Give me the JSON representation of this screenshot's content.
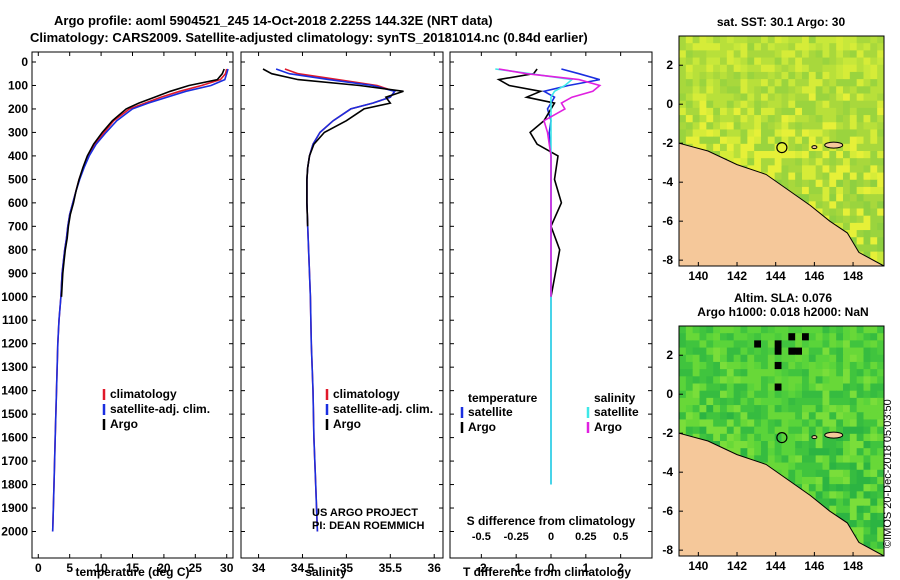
{
  "header": {
    "title_line1": "Argo profile: aoml 5904521_245 14-Oct-2018 2.225S 144.32E (NRT data)",
    "title_line2": "Climatology: CARS2009. Satellite-adjusted climatology: synTS_20181014.nc (0.84d earlier)"
  },
  "colors": {
    "climatology": "#e0182a",
    "satellite_adj": "#1a2ee0",
    "argo": "#000000",
    "sat_salinity": "#3ee8e8",
    "argo_salinity": "#e020e0",
    "land": "#f5c89a"
  },
  "depth_ticks": [
    "0",
    "100",
    "200",
    "300",
    "400",
    "500",
    "600",
    "700",
    "800",
    "900",
    "1000",
    "1100",
    "1200",
    "1300",
    "1400",
    "1500",
    "1600",
    "1700",
    "1800",
    "1900",
    "2000"
  ],
  "chart_data": [
    {
      "type": "line",
      "title": "temperature profile",
      "xlabel": "temperature (deg C)",
      "ylabel": "depth",
      "xlim": [
        -1,
        31
      ],
      "ylim": [
        2060,
        0
      ],
      "xticks": [
        "0",
        "5",
        "10",
        "15",
        "20",
        "25",
        "30"
      ],
      "series": [
        {
          "name": "climatology",
          "x": [
            30.0,
            29.8,
            29.0,
            26.0,
            22.5,
            19.5,
            17.0,
            14.5,
            12.0,
            10.5,
            9.0,
            8.0,
            7.2,
            6.5,
            6.0,
            5.5,
            5.0,
            4.7,
            4.5,
            4.2,
            4.0,
            3.8,
            3.6,
            3.3,
            3.1,
            2.9,
            2.7,
            2.5,
            2.3
          ],
          "y": [
            30,
            50,
            75,
            100,
            125,
            150,
            175,
            200,
            250,
            300,
            350,
            400,
            450,
            500,
            550,
            600,
            650,
            700,
            750,
            800,
            850,
            900,
            1000,
            1100,
            1200,
            1400,
            1600,
            1800,
            2000
          ]
        },
        {
          "name": "satellite-adj. clim.",
          "x": [
            30.2,
            30.0,
            29.7,
            27.5,
            23.5,
            20.5,
            17.5,
            15.0,
            12.5,
            10.8,
            9.2,
            8.1,
            7.3,
            6.6,
            6.0,
            5.5,
            5.0,
            4.7,
            4.5,
            4.2,
            4.0,
            3.8,
            3.6,
            3.3,
            3.1,
            2.9,
            2.7,
            2.5,
            2.3
          ],
          "y": [
            30,
            50,
            75,
            100,
            125,
            150,
            175,
            200,
            250,
            300,
            350,
            400,
            450,
            500,
            550,
            600,
            650,
            700,
            750,
            800,
            850,
            900,
            1000,
            1100,
            1200,
            1400,
            1600,
            1800,
            2000
          ]
        },
        {
          "name": "Argo",
          "x": [
            29.6,
            29.3,
            28.5,
            24.0,
            21.0,
            18.5,
            16.0,
            14.0,
            11.8,
            10.2,
            8.8,
            7.8,
            7.1,
            6.5,
            6.0,
            5.6,
            5.1,
            4.8,
            4.6,
            4.3,
            4.1,
            3.9,
            3.7
          ],
          "y": [
            30,
            50,
            75,
            100,
            125,
            150,
            175,
            200,
            250,
            300,
            350,
            400,
            450,
            500,
            550,
            600,
            650,
            700,
            750,
            800,
            850,
            900,
            1000
          ]
        }
      ],
      "legend": [
        "climatology",
        "satellite-adj. clim.",
        "Argo"
      ]
    },
    {
      "type": "line",
      "title": "salinity profile",
      "xlabel": "salinity",
      "ylabel": "depth",
      "xlim": [
        33.8,
        36.1
      ],
      "ylim": [
        2060,
        0
      ],
      "xticks": [
        "34",
        "34.5",
        "35",
        "35.5",
        "36"
      ],
      "series": [
        {
          "name": "climatology",
          "x": [
            34.3,
            34.45,
            34.9,
            35.35,
            35.55,
            35.5,
            35.3,
            35.05,
            34.85,
            34.7,
            34.62,
            34.58,
            34.56,
            34.55,
            34.55,
            34.56,
            34.57,
            34.58,
            34.59,
            34.6,
            34.62,
            34.63,
            34.65,
            34.67
          ],
          "y": [
            30,
            50,
            75,
            100,
            125,
            150,
            175,
            200,
            250,
            300,
            350,
            400,
            450,
            500,
            600,
            700,
            800,
            900,
            1000,
            1200,
            1400,
            1600,
            1800,
            2000
          ]
        },
        {
          "name": "satellite-adj. clim.",
          "x": [
            34.2,
            34.35,
            34.8,
            35.3,
            35.55,
            35.5,
            35.3,
            35.05,
            34.85,
            34.7,
            34.62,
            34.58,
            34.56,
            34.55,
            34.55,
            34.56,
            34.57,
            34.58,
            34.59,
            34.6,
            34.62,
            34.63,
            34.65,
            34.67
          ],
          "y": [
            30,
            50,
            75,
            100,
            125,
            150,
            175,
            200,
            250,
            300,
            350,
            400,
            450,
            500,
            600,
            700,
            800,
            900,
            1000,
            1200,
            1400,
            1600,
            1800,
            2000
          ]
        },
        {
          "name": "Argo",
          "x": [
            34.05,
            34.15,
            34.45,
            35.15,
            35.65,
            35.45,
            35.5,
            35.2,
            35.0,
            34.75,
            34.63,
            34.58,
            34.56,
            34.55,
            34.55,
            34.56
          ],
          "y": [
            30,
            50,
            75,
            100,
            125,
            150,
            175,
            200,
            250,
            300,
            350,
            400,
            450,
            500,
            600,
            700
          ]
        }
      ],
      "legend": [
        "climatology",
        "satellite-adj. clim.",
        "Argo"
      ],
      "annotation_line1": "US ARGO PROJECT",
      "annotation_line2": "PI: DEAN ROEMMICH"
    },
    {
      "type": "line",
      "title": "difference from climatology",
      "xlabel": "T difference from climatology",
      "top_xlabel": "S difference from climatology",
      "xlim": [
        -2.9,
        2.9
      ],
      "ylim": [
        2060,
        0
      ],
      "xticks": [
        "-2",
        "-1",
        "0",
        "1",
        "2"
      ],
      "top_xticks": [
        "-0.5",
        "-0.25",
        "0",
        "0.25",
        "0.5"
      ],
      "series": [
        {
          "name": "temperature satellite",
          "x": [
            0.3,
            0.8,
            1.4,
            0.5,
            -0.2,
            0.1,
            0.0,
            -0.1,
            0.0,
            -0.05,
            0.0,
            0.0,
            0.0,
            0.0,
            0.0,
            0.0,
            0.0,
            0.0,
            0.0
          ],
          "y": [
            30,
            50,
            75,
            100,
            125,
            150,
            175,
            200,
            250,
            300,
            400,
            500,
            700,
            900,
            1100,
            1300,
            1500,
            1700,
            1800
          ]
        },
        {
          "name": "temperature Argo",
          "x": [
            -0.4,
            -0.5,
            -1.5,
            -1.2,
            -0.3,
            -0.7,
            0.1,
            0.0,
            -0.2,
            -0.6,
            -0.4,
            0.2,
            0.1,
            0.3,
            0.0,
            0.25,
            0.0
          ],
          "y": [
            30,
            50,
            75,
            100,
            125,
            150,
            175,
            200,
            250,
            300,
            350,
            400,
            500,
            600,
            700,
            800,
            1000
          ]
        },
        {
          "name": "salinity satellite",
          "x": [
            -1.6,
            -0.6,
            0.6,
            0.4,
            0.1,
            0.0,
            0.0,
            0.0,
            0.0,
            0.0,
            0.0,
            0.0,
            0.0,
            0.0
          ],
          "y": [
            30,
            50,
            75,
            100,
            125,
            150,
            175,
            200,
            300,
            500,
            800,
            1200,
            1500,
            1800
          ]
        },
        {
          "name": "salinity Argo",
          "x": [
            -1.5,
            -0.7,
            0.8,
            1.4,
            1.2,
            0.6,
            0.3,
            0.4,
            -0.2,
            -0.1,
            0.0,
            0.0,
            0.0,
            0.0
          ],
          "y": [
            30,
            50,
            75,
            100,
            125,
            150,
            175,
            200,
            250,
            300,
            400,
            600,
            800,
            1000
          ]
        }
      ],
      "legend_temperature_header": "temperature",
      "legend_salinity_header": "salinity",
      "legend_temperature": [
        "satellite",
        "Argo"
      ],
      "legend_salinity": [
        "satellite",
        "Argo"
      ]
    },
    {
      "type": "heatmap",
      "title": "sat. SST: 30.1 Argo: 30",
      "xticks": [
        "140",
        "142",
        "144",
        "146",
        "148"
      ],
      "yticks": [
        "2",
        "0",
        "-2",
        "-4",
        "-6",
        "-8"
      ],
      "argo_position": {
        "lon": 144.32,
        "lat": -2.225
      }
    },
    {
      "type": "heatmap",
      "title_line1": "Altim. SLA: 0.076",
      "title_line2": "Argo h1000: 0.018 h2000: NaN",
      "xticks": [
        "140",
        "142",
        "144",
        "146",
        "148"
      ],
      "yticks": [
        "2",
        "0",
        "-2",
        "-4",
        "-6",
        "-8"
      ],
      "argo_position": {
        "lon": 144.32,
        "lat": -2.225
      }
    }
  ],
  "footer": {
    "stamp": "©IMOS 20-Dec-2018 05:03:50"
  }
}
